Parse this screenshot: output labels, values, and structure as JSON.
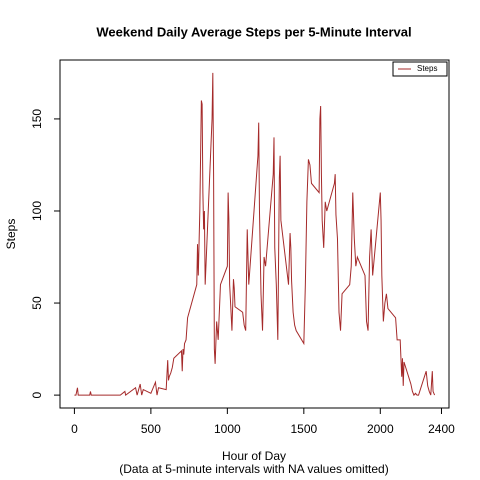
{
  "chart_data": {
    "type": "line",
    "title": "Weekend Daily Average Steps per 5-Minute Interval",
    "x_label": "Hour of Day",
    "subtitle": "(Data at 5-minute intervals with NA values omitted)",
    "y_label": "Steps",
    "x": [
      0,
      10,
      20,
      25,
      100,
      105,
      110,
      300,
      330,
      335,
      400,
      410,
      420,
      430,
      440,
      450,
      500,
      530,
      540,
      550,
      600,
      610,
      615,
      620,
      630,
      640,
      650,
      700,
      705,
      710,
      715,
      720,
      730,
      740,
      750,
      800,
      805,
      810,
      820,
      830,
      835,
      840,
      845,
      850,
      855,
      900,
      905,
      910,
      915,
      920,
      930,
      940,
      950,
      955,
      1000,
      1005,
      1010,
      1015,
      1020,
      1030,
      1040,
      1045,
      1050,
      1100,
      1110,
      1120,
      1130,
      1140,
      1200,
      1205,
      1210,
      1220,
      1230,
      1240,
      1250,
      1300,
      1305,
      1310,
      1320,
      1330,
      1340,
      1345,
      1350,
      1400,
      1410,
      1415,
      1420,
      1430,
      1440,
      1450,
      1500,
      1510,
      1520,
      1530,
      1540,
      1550,
      1600,
      1605,
      1610,
      1615,
      1620,
      1630,
      1640,
      1650,
      1700,
      1705,
      1710,
      1720,
      1730,
      1740,
      1750,
      1800,
      1810,
      1820,
      1830,
      1840,
      1850,
      1900,
      1910,
      1920,
      1930,
      1940,
      1950,
      2000,
      2005,
      2010,
      2020,
      2030,
      2040,
      2050,
      2100,
      2110,
      2120,
      2130,
      2140,
      2145,
      2150,
      2155,
      2200,
      2210,
      2220,
      2230,
      2240,
      2250,
      2300,
      2310,
      2320,
      2330,
      2340,
      2345,
      2355
    ],
    "series": [
      {
        "name": "Steps",
        "color": "#a52a2a",
        "values": [
          0,
          0,
          4,
          0,
          0,
          2,
          0,
          0,
          2,
          0,
          4,
          0,
          3,
          6,
          0,
          3,
          1,
          7,
          0,
          4,
          3,
          19,
          8,
          10,
          12,
          15,
          20,
          24,
          13,
          25,
          22,
          28,
          30,
          42,
          45,
          60,
          82,
          65,
          100,
          160,
          158,
          110,
          90,
          100,
          60,
          150,
          175,
          120,
          25,
          17,
          40,
          30,
          50,
          60,
          70,
          110,
          95,
          60,
          52,
          35,
          63,
          58,
          48,
          45,
          38,
          35,
          90,
          60,
          130,
          148,
          100,
          55,
          35,
          75,
          70,
          120,
          140,
          80,
          60,
          30,
          118,
          130,
          95,
          60,
          88,
          80,
          62,
          45,
          38,
          35,
          28,
          60,
          105,
          128,
          125,
          115,
          110,
          150,
          157,
          120,
          95,
          80,
          105,
          100,
          115,
          120,
          98,
          85,
          45,
          35,
          55,
          60,
          70,
          110,
          85,
          70,
          75,
          65,
          40,
          35,
          75,
          90,
          65,
          110,
          95,
          65,
          40,
          50,
          55,
          47,
          42,
          30,
          30,
          30,
          10,
          20,
          5,
          18,
          6,
          2,
          0,
          1,
          0,
          0,
          13,
          5,
          2,
          0,
          13,
          2,
          0
        ]
      }
    ],
    "xlim": [
      -94.2,
      2449.2
    ],
    "xticks": [
      0,
      500,
      1000,
      1500,
      2000,
      2400
    ],
    "ylim": [
      -7,
      182
    ],
    "yticks": [
      0,
      50,
      100,
      150
    ],
    "legend": "topright"
  }
}
